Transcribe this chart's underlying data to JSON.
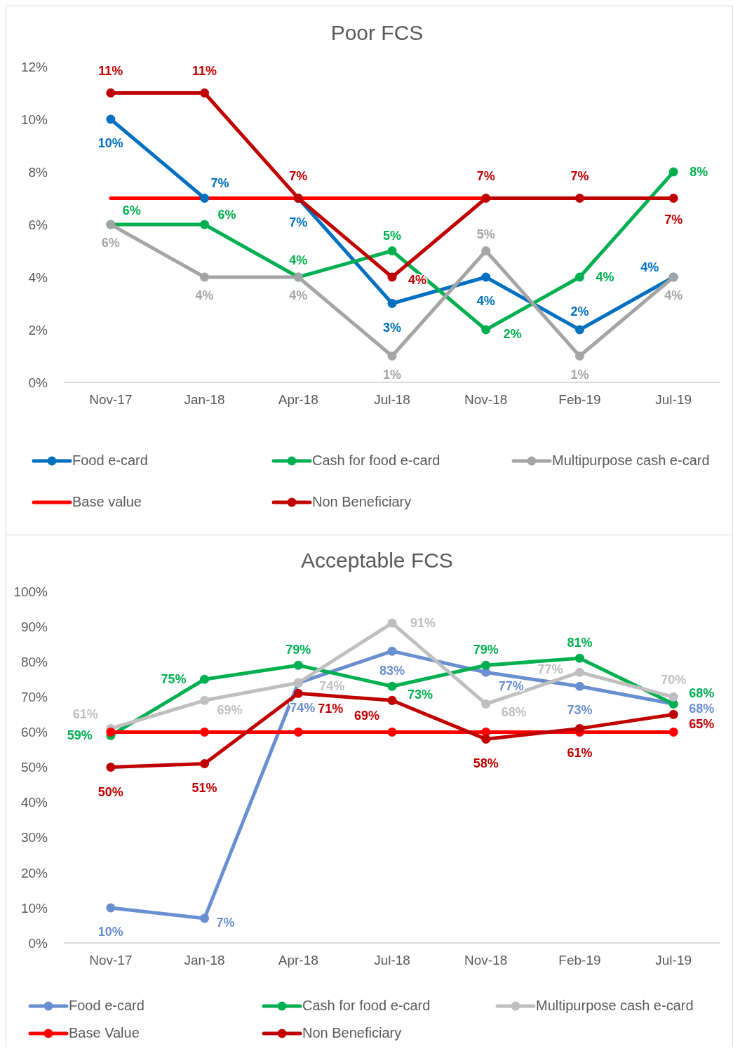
{
  "chart_data": [
    {
      "type": "line",
      "title": "Poor FCS",
      "categories": [
        "Nov-17",
        "Jan-18",
        "Apr-18",
        "Jul-18",
        "Nov-18",
        "Feb-19",
        "Jul-19"
      ],
      "series": [
        {
          "name": "Food e-card",
          "color": "#0070c0",
          "values": [
            10,
            7,
            7,
            3,
            4,
            2,
            4
          ],
          "value_labels": [
            "10%",
            "7%",
            "7%",
            "3%",
            "4%",
            "2%",
            "4%"
          ]
        },
        {
          "name": "Cash for food e-card",
          "color": "#00b050",
          "values": [
            6,
            6,
            4,
            5,
            2,
            4,
            8
          ],
          "value_labels": [
            "6%",
            "6%",
            "4%",
            "5%",
            "2%",
            "4%",
            "8%"
          ]
        },
        {
          "name": "Multipurpose cash e-card",
          "color": "#a5a5a5",
          "values": [
            6,
            4,
            4,
            1,
            5,
            1,
            4
          ],
          "value_labels": [
            "6%",
            "4%",
            "4%",
            "1%",
            "5%",
            "1%",
            "4%"
          ]
        },
        {
          "name": "Base value",
          "color": "#ff0000",
          "values": [
            7,
            7,
            7,
            7,
            7,
            7,
            7
          ],
          "marker": "none"
        },
        {
          "name": "Non Beneficiary",
          "color": "#c00000",
          "values": [
            11,
            11,
            7,
            4,
            7,
            7,
            7
          ],
          "value_labels": [
            "11%",
            "11%",
            "7%",
            "4%",
            "7%",
            "7%",
            "7%"
          ]
        }
      ],
      "ylim": [
        0,
        12
      ],
      "yticks": [
        {
          "value": 0,
          "label": "0%"
        },
        {
          "value": 2,
          "label": "2%"
        },
        {
          "value": 4,
          "label": "4%"
        },
        {
          "value": 6,
          "label": "6%"
        },
        {
          "value": 8,
          "label": "8%"
        },
        {
          "value": 10,
          "label": "10%"
        },
        {
          "value": 12,
          "label": "12%"
        }
      ],
      "legend": "bottom",
      "marker": "circle"
    },
    {
      "type": "line",
      "title": "Acceptable FCS",
      "categories": [
        "Nov-17",
        "Jan-18",
        "Apr-18",
        "Jul-18",
        "Nov-18",
        "Feb-19",
        "Jul-19"
      ],
      "series": [
        {
          "name": "Food e-card",
          "color": "#6a8fd0",
          "values": [
            10,
            7,
            74,
            83,
            77,
            73,
            68
          ],
          "value_labels": [
            "10%",
            "7%",
            "74%",
            "83%",
            "77%",
            "73%",
            "68%"
          ]
        },
        {
          "name": "Cash for food e-card",
          "color": "#00b050",
          "values": [
            59,
            75,
            79,
            73,
            79,
            81,
            68
          ],
          "value_labels": [
            "59%",
            "75%",
            "79%",
            "73%",
            "79%",
            "81%",
            "68%"
          ]
        },
        {
          "name": "Multipurpose cash e-card",
          "color": "#bfbfbf",
          "values": [
            61,
            69,
            74,
            91,
            68,
            77,
            70
          ],
          "value_labels": [
            "61%",
            "69%",
            "74%",
            "91%",
            "68%",
            "77%",
            "70%"
          ]
        },
        {
          "name": "Base Value",
          "color": "#ff0000",
          "values": [
            60,
            60,
            60,
            60,
            60,
            60,
            60
          ]
        },
        {
          "name": "Non Beneficiary",
          "color": "#c00000",
          "values": [
            50,
            51,
            71,
            69,
            58,
            61,
            65
          ],
          "value_labels": [
            "50%",
            "51%",
            "71%",
            "69%",
            "58%",
            "61%",
            "65%"
          ]
        }
      ],
      "ylim": [
        0,
        100
      ],
      "yticks": [
        {
          "value": 0,
          "label": "0%"
        },
        {
          "value": 10,
          "label": "10%"
        },
        {
          "value": 20,
          "label": "20%"
        },
        {
          "value": 30,
          "label": "30%"
        },
        {
          "value": 40,
          "label": "40%"
        },
        {
          "value": 50,
          "label": "50%"
        },
        {
          "value": 60,
          "label": "60%"
        },
        {
          "value": 70,
          "label": "70%"
        },
        {
          "value": 80,
          "label": "80%"
        },
        {
          "value": 90,
          "label": "90%"
        },
        {
          "value": 100,
          "label": "100%"
        }
      ],
      "legend": "bottom",
      "marker": "circle"
    }
  ]
}
